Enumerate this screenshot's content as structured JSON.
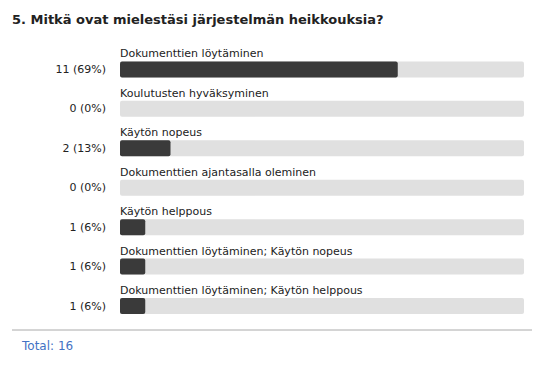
{
  "chart_data": {
    "type": "bar",
    "orientation": "horizontal",
    "title": "5. Mitkä ovat mielestäsi järjestelmän heikkouksia?",
    "categories": [
      "Dokumenttien löytäminen",
      "Koulutusten hyväksyminen",
      "Käytön nopeus",
      "Dokumenttien ajantasalla oleminen",
      "Käytön helppous",
      "Dokumenttien löytäminen; Käytön nopeus",
      "Dokumenttien löytäminen; Käytön helppous"
    ],
    "values": [
      11,
      0,
      2,
      0,
      1,
      1,
      1
    ],
    "value_labels": [
      "11 (69%)",
      "0 (0%)",
      "2 (13%)",
      "0 (0%)",
      "1 (6%)",
      "1 (6%)",
      "1 (6%)"
    ],
    "color": "#3a3a3a",
    "xlim": [
      0,
      16
    ],
    "annotations": [
      "Total: 16"
    ],
    "grid": false,
    "tick_labels": false
  }
}
